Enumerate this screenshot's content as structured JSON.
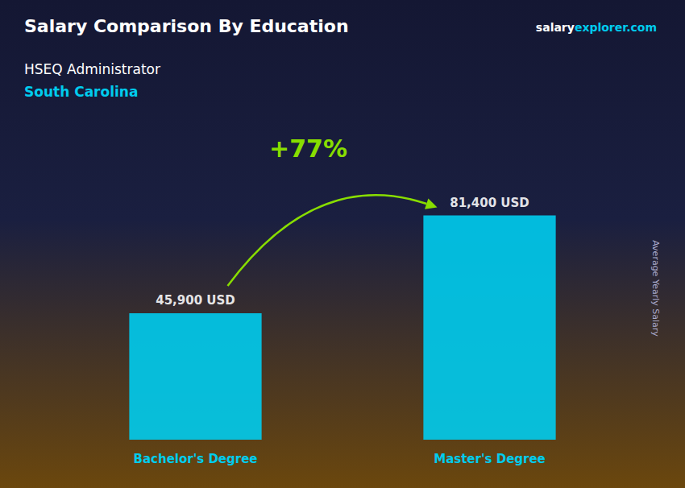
{
  "chart_data": {
    "type": "bar",
    "title": "Salary Comparison By Education",
    "subtitle": "HSEQ Administrator",
    "annotations": [
      "South Carolina",
      "salary",
      "explorer.com",
      "+77%"
    ],
    "ylabel": "Average Yearly Salary",
    "categories": [
      "Bachelor's Degree",
      "Master's Degree"
    ],
    "values": [
      45900,
      81400
    ],
    "value_labels": [
      "45,900 USD",
      "81,400 USD"
    ],
    "data_labels": true,
    "color": "#00CCEE",
    "ylim": [
      0,
      109890
    ],
    "tick_labels": "x",
    "grid": false
  }
}
